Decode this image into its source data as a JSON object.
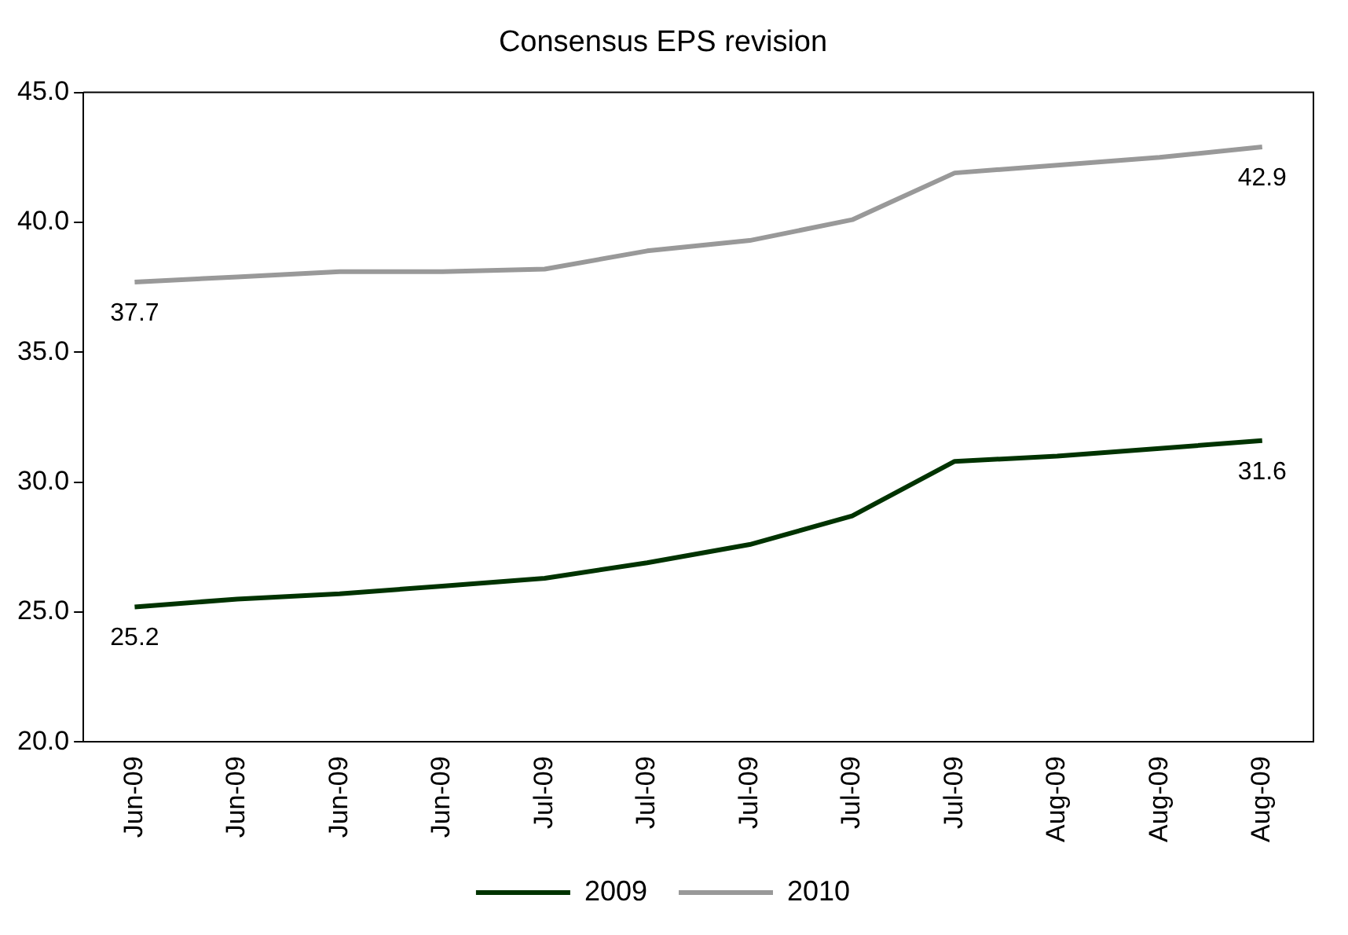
{
  "chart_data": {
    "type": "line",
    "title": "Consensus EPS revision",
    "categories": [
      "Jun-09",
      "Jun-09",
      "Jun-09",
      "Jun-09",
      "Jul-09",
      "Jul-09",
      "Jul-09",
      "Jul-09",
      "Jul-09",
      "Aug-09",
      "Aug-09",
      "Aug-09"
    ],
    "series": [
      {
        "name": "2009",
        "color": "#003300",
        "values": [
          25.2,
          25.5,
          25.7,
          26.0,
          26.3,
          26.9,
          27.6,
          28.7,
          30.8,
          31.0,
          31.3,
          31.6
        ],
        "value_labels": [
          "25.2",
          null,
          null,
          null,
          null,
          null,
          null,
          null,
          null,
          null,
          null,
          "31.6"
        ]
      },
      {
        "name": "2010",
        "color": "#999999",
        "values": [
          37.7,
          37.9,
          38.1,
          38.1,
          38.2,
          38.9,
          39.3,
          40.1,
          41.9,
          42.2,
          42.5,
          42.9
        ],
        "value_labels": [
          "37.7",
          null,
          null,
          null,
          null,
          null,
          null,
          null,
          null,
          null,
          null,
          "42.9"
        ]
      }
    ],
    "ylim": [
      20,
      45
    ],
    "yticks": [
      {
        "value": 20,
        "label": "20.0"
      },
      {
        "value": 25,
        "label": "25.0"
      },
      {
        "value": 30,
        "label": "30.0"
      },
      {
        "value": 35,
        "label": "35.0"
      },
      {
        "value": 40,
        "label": "40.0"
      },
      {
        "value": 45,
        "label": "45.0"
      }
    ],
    "grid": false,
    "legend": "bottom",
    "marker": "none",
    "line_style": "solid"
  }
}
